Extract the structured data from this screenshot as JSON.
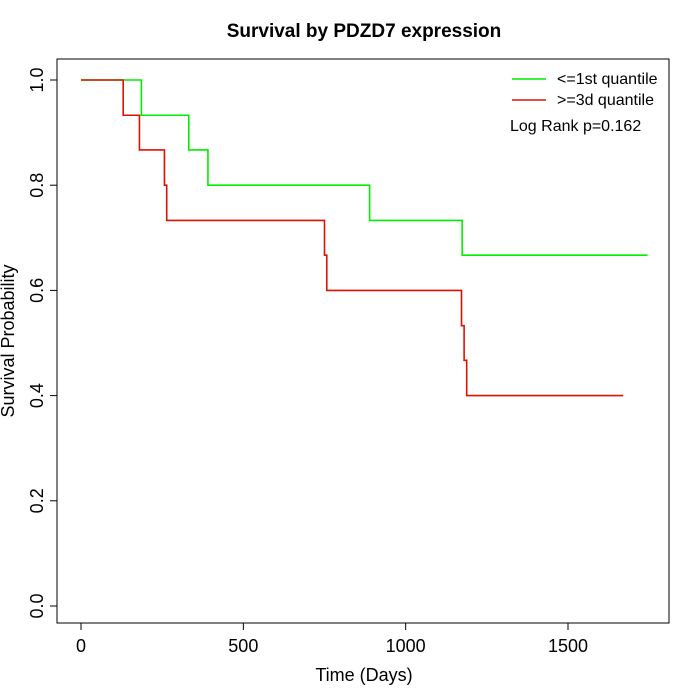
{
  "chart_data": {
    "type": "line",
    "title": "Survival by PDZD7 expression",
    "xlabel": "Time (Days)",
    "ylabel": "Survival Probability",
    "xlim": [
      0,
      1800
    ],
    "ylim": [
      0,
      1.0
    ],
    "x_ticks": [
      0,
      500,
      1000,
      1500
    ],
    "x_tick_labels": [
      "0",
      "500",
      "1000",
      "1500"
    ],
    "y_ticks": [
      0.0,
      0.2,
      0.4,
      0.6,
      0.8,
      1.0
    ],
    "y_tick_labels": [
      "0.0",
      "0.2",
      "0.4",
      "0.6",
      "0.8",
      "1.0"
    ],
    "grid": false,
    "legend_position": "top-right",
    "annotation": "Log Rank p=0.162",
    "series": [
      {
        "name": "<=1st quantile",
        "color": "#00ee00",
        "step": true,
        "x": [
          0,
          186,
          332,
          391,
          889,
          1174,
          1745
        ],
        "y": [
          1.0,
          0.933,
          0.867,
          0.8,
          0.733,
          0.667,
          0.667
        ]
      },
      {
        "name": ">=3d quantile",
        "color": "#dd1100",
        "step": true,
        "x": [
          0,
          130,
          180,
          257,
          264,
          750,
          757,
          1172,
          1180,
          1188,
          1670
        ],
        "y": [
          1.0,
          0.933,
          0.867,
          0.8,
          0.733,
          0.667,
          0.6,
          0.533,
          0.467,
          0.4,
          0.4
        ]
      }
    ]
  }
}
